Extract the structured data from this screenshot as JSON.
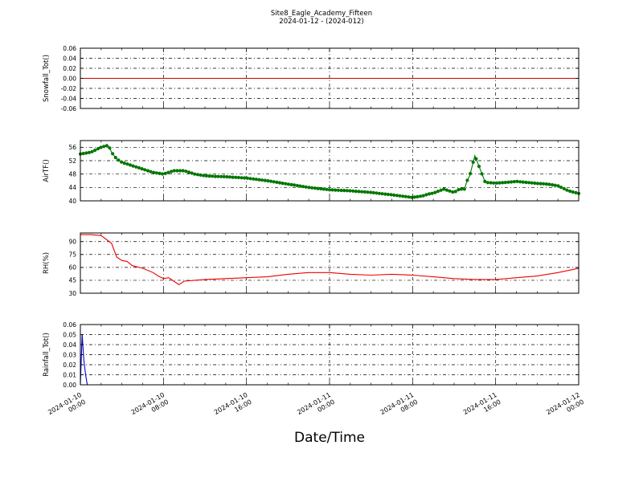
{
  "title": "Site8_Eagle_Academy_Fifteen",
  "subtitle": "2024-01-12 - (2024-012)",
  "xlabel": "Date/Time",
  "x_ticks": [
    "2024-01-10 00:00",
    "2024-01-10 08:00",
    "2024-01-10 16:00",
    "2024-01-11 00:00",
    "2024-01-11 08:00",
    "2024-01-11 16:00",
    "2024-01-12 00:00"
  ],
  "x_range": [
    "2024-01-10 00:00",
    "2024-01-12 00:00"
  ],
  "chart_data": [
    {
      "type": "line",
      "ylabel": "Snowfall_Tot()",
      "ylim": [
        -0.06,
        0.06
      ],
      "yticks": [
        -0.06,
        -0.04,
        -0.02,
        0.0,
        0.02,
        0.04,
        0.06
      ],
      "tick_decimals": 2,
      "color": "#cc0000",
      "markers": false,
      "grid": true,
      "x": [
        "2024-01-10 00:00",
        "2024-01-12 00:00"
      ],
      "values": [
        0.0,
        0.0
      ]
    },
    {
      "type": "line",
      "ylabel": "AirTF()",
      "ylim": [
        40,
        58
      ],
      "yticks": [
        40,
        44,
        48,
        52,
        56
      ],
      "tick_decimals": 0,
      "color": "#007700",
      "markers": true,
      "grid": true,
      "x": [
        "2024-01-10 00:00",
        "2024-01-10 01:00",
        "2024-01-10 02:00",
        "2024-01-10 02:30",
        "2024-01-10 02:45",
        "2024-01-10 03:00",
        "2024-01-10 03:30",
        "2024-01-10 04:00",
        "2024-01-10 05:00",
        "2024-01-10 06:00",
        "2024-01-10 07:00",
        "2024-01-10 08:00",
        "2024-01-10 08:30",
        "2024-01-10 09:00",
        "2024-01-10 10:00",
        "2024-01-10 11:00",
        "2024-01-10 12:00",
        "2024-01-10 13:00",
        "2024-01-10 14:00",
        "2024-01-10 16:00",
        "2024-01-10 18:00",
        "2024-01-10 20:00",
        "2024-01-10 22:00",
        "2024-01-11 00:00",
        "2024-01-11 02:00",
        "2024-01-11 04:00",
        "2024-01-11 06:00",
        "2024-01-11 08:00",
        "2024-01-11 09:00",
        "2024-01-11 09:30",
        "2024-01-11 10:00",
        "2024-01-11 11:00",
        "2024-01-11 12:00",
        "2024-01-11 12:30",
        "2024-01-11 13:00",
        "2024-01-11 13:15",
        "2024-01-11 13:30",
        "2024-01-11 14:00",
        "2024-01-11 15:00",
        "2024-01-11 16:00",
        "2024-01-11 17:00",
        "2024-01-11 18:00",
        "2024-01-11 19:00",
        "2024-01-11 20:00",
        "2024-01-11 21:00",
        "2024-01-11 22:00",
        "2024-01-11 23:00",
        "2024-01-12 00:00"
      ],
      "values": [
        54.0,
        54.5,
        56.0,
        56.5,
        56.3,
        54.5,
        52.5,
        51.5,
        50.5,
        49.5,
        48.5,
        48.0,
        48.5,
        49.0,
        49.0,
        48.0,
        47.5,
        47.3,
        47.2,
        46.8,
        46.0,
        45.0,
        44.0,
        43.3,
        43.0,
        42.5,
        41.8,
        41.0,
        41.5,
        42.0,
        42.3,
        43.5,
        42.5,
        43.5,
        43.5,
        46.0,
        47.5,
        53.5,
        45.5,
        45.3,
        45.5,
        45.8,
        45.5,
        45.2,
        45.0,
        44.5,
        43.0,
        42.2
      ]
    },
    {
      "type": "line",
      "ylabel": "RH(%)",
      "ylim": [
        30,
        100
      ],
      "yticks": [
        30,
        45,
        60,
        75,
        90
      ],
      "tick_decimals": 0,
      "color": "#ee0000",
      "markers": false,
      "grid": true,
      "x": [
        "2024-01-10 00:00",
        "2024-01-10 01:00",
        "2024-01-10 02:00",
        "2024-01-10 03:00",
        "2024-01-10 03:30",
        "2024-01-10 04:00",
        "2024-01-10 04:30",
        "2024-01-10 05:00",
        "2024-01-10 06:00",
        "2024-01-10 07:00",
        "2024-01-10 07:30",
        "2024-01-10 08:00",
        "2024-01-10 08:30",
        "2024-01-10 09:00",
        "2024-01-10 09:30",
        "2024-01-10 10:00",
        "2024-01-10 11:00",
        "2024-01-10 12:00",
        "2024-01-10 14:00",
        "2024-01-10 16:00",
        "2024-01-10 18:00",
        "2024-01-10 20:00",
        "2024-01-10 22:00",
        "2024-01-11 00:00",
        "2024-01-11 02:00",
        "2024-01-11 04:00",
        "2024-01-11 06:00",
        "2024-01-11 08:00",
        "2024-01-11 10:00",
        "2024-01-11 12:00",
        "2024-01-11 14:00",
        "2024-01-11 16:00",
        "2024-01-11 18:00",
        "2024-01-11 20:00",
        "2024-01-11 22:00",
        "2024-01-12 00:00"
      ],
      "values": [
        98,
        98,
        97,
        88,
        72,
        68,
        67,
        62,
        59,
        54,
        50,
        47,
        48,
        44,
        40,
        44,
        45,
        46,
        47,
        48,
        49,
        52,
        54,
        54,
        52,
        51,
        52,
        51,
        49,
        47,
        46,
        46,
        48,
        50,
        54,
        59
      ]
    },
    {
      "type": "line",
      "ylabel": "Rainfall_Tot()",
      "ylim": [
        0.0,
        0.06
      ],
      "yticks": [
        0.0,
        0.01,
        0.02,
        0.03,
        0.04,
        0.05,
        0.06
      ],
      "tick_decimals": 2,
      "color": "#0000cc",
      "markers": false,
      "grid": true,
      "x": [
        "2024-01-10 00:00",
        "2024-01-10 00:10",
        "2024-01-10 00:20",
        "2024-01-10 00:30",
        "2024-01-10 00:40",
        "2024-01-12 00:00"
      ],
      "values": [
        0.0,
        0.05,
        0.025,
        0.01,
        0.0,
        0.0
      ]
    }
  ]
}
